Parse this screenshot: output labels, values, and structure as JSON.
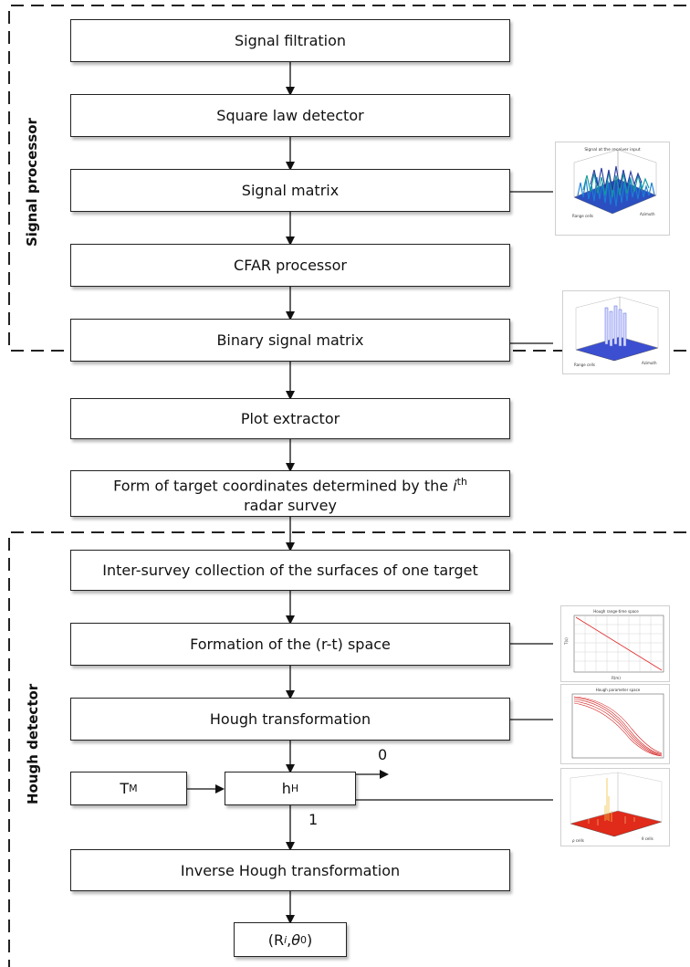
{
  "regions": {
    "signal_processor": "Signal processor",
    "hough_detector": "Hough detector"
  },
  "blocks": {
    "signal_filtration": "Signal filtration",
    "square_law": "Square law detector",
    "signal_matrix": "Signal matrix",
    "cfar": "CFAR processor",
    "binary_matrix": "Binary signal matrix",
    "plot_extractor": "Plot extractor",
    "form_line1_pre": "Form of target coordinates determined by the ",
    "form_line1_var": "i",
    "form_line1_sup": "th",
    "form_line2": "radar survey",
    "inter_survey": "Inter-survey collection of the surfaces of one target",
    "formation": "Formation of the (r-t) space",
    "hough": "Hough transformation",
    "tm_main": "T",
    "tm_sub": "M",
    "hh_main": "h",
    "hh_sub": "H",
    "inverse_hough": "Inverse Hough transformation",
    "output_open": "(R",
    "output_sub_i": "i",
    "output_sep": ", ",
    "output_theta": "θ",
    "output_sub_0": "0",
    "output_close": ")"
  },
  "branch_labels": {
    "zero": "0",
    "one": "1"
  },
  "thumbnails": {
    "signal_matrix_plot": {
      "title": "Signal at the receiver input",
      "xlabel": "Range cells",
      "ylabel": "Azimuth"
    },
    "binary_matrix_plot": {
      "xlabel": "Range cells",
      "ylabel": "Azimuth"
    },
    "rt_space_plot": {
      "title": "Hough range-time space",
      "xlabel": "R(m)",
      "ylabel": "T(s)"
    },
    "hough_space_plot": {
      "title": "Hough parameter space"
    },
    "hough_threshold_plot": {
      "xlabel": "ρ cells",
      "ylabel": "θ cells"
    }
  },
  "colors": {
    "dashed_border": "#222222",
    "thumb_blue": "#1f3fae",
    "thumb_red": "#d42020"
  }
}
